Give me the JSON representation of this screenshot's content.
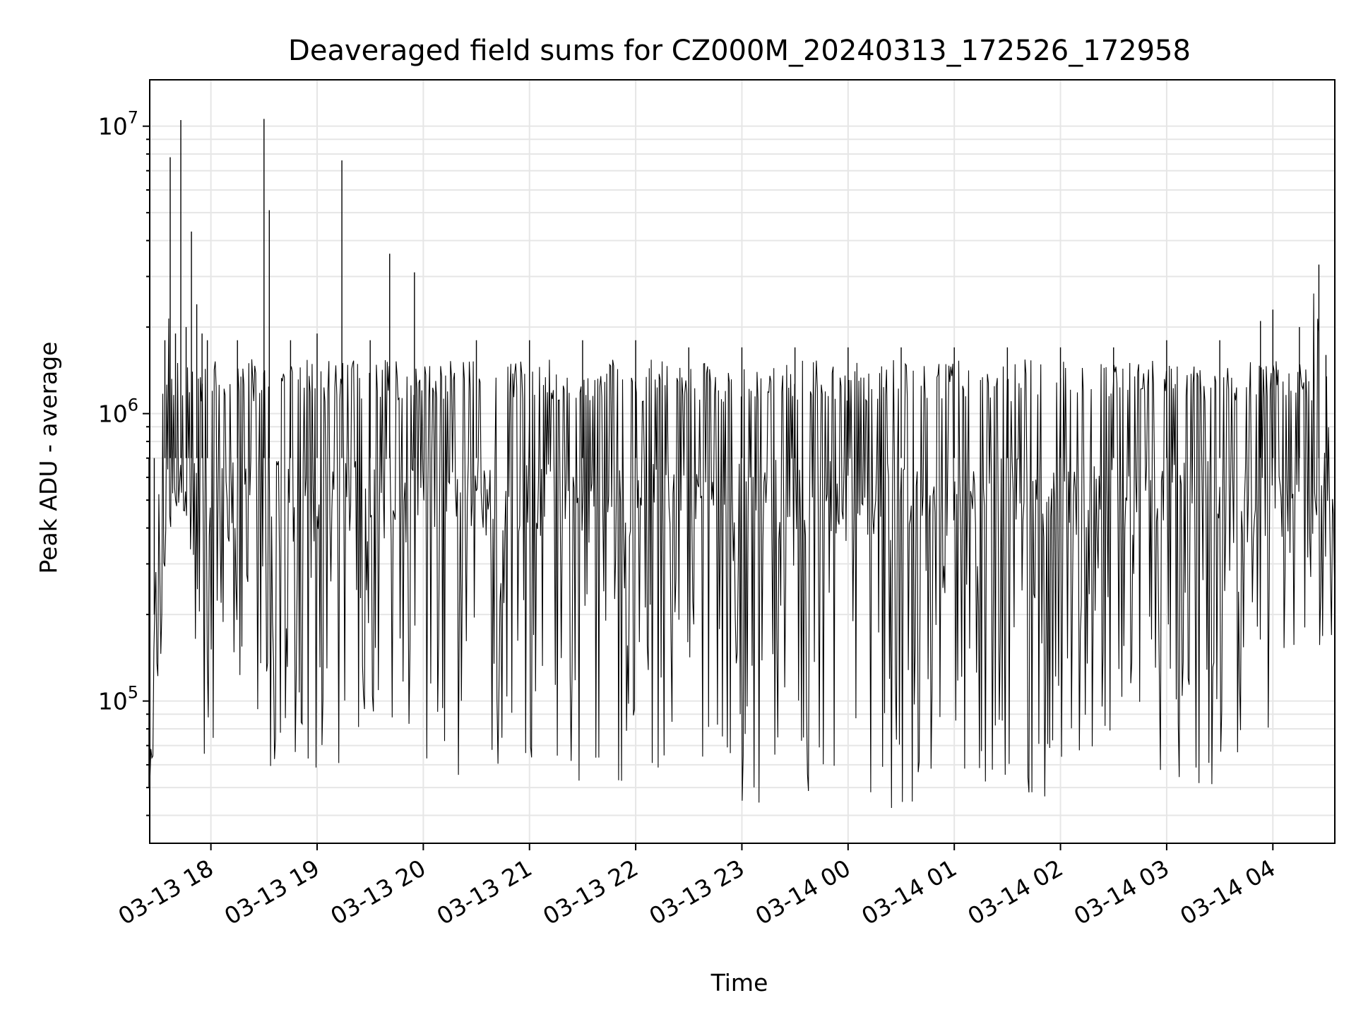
{
  "chart_data": {
    "type": "line",
    "title": "Deaveraged field sums for CZ000M_20240313_172526_172958",
    "xlabel": "Time",
    "ylabel": "Peak ADU - average",
    "y_scale": "log",
    "ylim": [
      32000,
      14500000
    ],
    "y_major_ticks": [
      100000,
      1000000,
      10000000
    ],
    "y_tick_labels": [
      {
        "base": "10",
        "exp": "5"
      },
      {
        "base": "10",
        "exp": "6"
      },
      {
        "base": "10",
        "exp": "7"
      }
    ],
    "xlim": [
      "2024-03-13 17:25:26",
      "2024-03-14 04:35:00"
    ],
    "x_ticks": [
      "2024-03-13 18:00",
      "2024-03-13 19:00",
      "2024-03-13 20:00",
      "2024-03-13 21:00",
      "2024-03-13 22:00",
      "2024-03-13 23:00",
      "2024-03-14 00:00",
      "2024-03-14 01:00",
      "2024-03-14 02:00",
      "2024-03-14 03:00",
      "2024-03-14 04:00"
    ],
    "x_tick_labels": [
      "03-13 18",
      "03-13 19",
      "03-13 20",
      "03-13 21",
      "03-13 22",
      "03-13 23",
      "03-14 00",
      "03-14 01",
      "03-14 02",
      "03-14 03",
      "03-14 04"
    ],
    "grid": true,
    "line_color": "#000000",
    "grid_color": "#e6e6e6",
    "series": [
      {
        "x": [
          "2024-03-13 17:25",
          "2024-03-13 17:28",
          "2024-03-13 17:31",
          "2024-03-13 17:34",
          "2024-03-13 17:37",
          "2024-03-13 17:40",
          "2024-03-13 17:43",
          "2024-03-13 17:46",
          "2024-03-13 17:49",
          "2024-03-13 17:52",
          "2024-03-13 17:55",
          "2024-03-13 17:58",
          "2024-03-13 18:15",
          "2024-03-13 18:30",
          "2024-03-13 18:33",
          "2024-03-13 18:45",
          "2024-03-13 19:00",
          "2024-03-13 19:14",
          "2024-03-13 19:30",
          "2024-03-13 19:41",
          "2024-03-13 19:55",
          "2024-03-13 20:30",
          "2024-03-13 21:00",
          "2024-03-13 21:30",
          "2024-03-13 22:00",
          "2024-03-13 22:30",
          "2024-03-13 23:00",
          "2024-03-13 23:30",
          "2024-03-14 00:00",
          "2024-03-14 00:30",
          "2024-03-14 01:00",
          "2024-03-14 01:30",
          "2024-03-14 02:00",
          "2024-03-14 02:30",
          "2024-03-14 03:00",
          "2024-03-14 03:30",
          "2024-03-14 03:53",
          "2024-03-14 04:00",
          "2024-03-14 04:15",
          "2024-03-14 04:26",
          "2024-03-14 04:30",
          "2024-03-14 04:35"
        ],
        "y_upper": [
          50000,
          200000,
          700000,
          1800000,
          7800000,
          1900000,
          10500000,
          2000000,
          4300000,
          2400000,
          1900000,
          1800000,
          1800000,
          10600000,
          5100000,
          1800000,
          1900000,
          7600000,
          1800000,
          3600000,
          3100000,
          1800000,
          1800000,
          1800000,
          1800000,
          1700000,
          1700000,
          1700000,
          1700000,
          1700000,
          1700000,
          1700000,
          1700000,
          1700000,
          1800000,
          1800000,
          2100000,
          2300000,
          2000000,
          3300000,
          1600000,
          400000
        ],
        "y_lower": [
          50000,
          70000,
          100000,
          200000,
          300000,
          500000,
          400000,
          250000,
          200000,
          90000,
          65000,
          60000,
          60000,
          55000,
          58000,
          60000,
          55000,
          55000,
          50000,
          55000,
          50000,
          52000,
          54000,
          52000,
          52000,
          55000,
          45000,
          42000,
          40000,
          42000,
          45000,
          42000,
          45000,
          45000,
          50000,
          50000,
          80000,
          60000,
          140000,
          130000,
          200000,
          130000
        ]
      }
    ]
  }
}
